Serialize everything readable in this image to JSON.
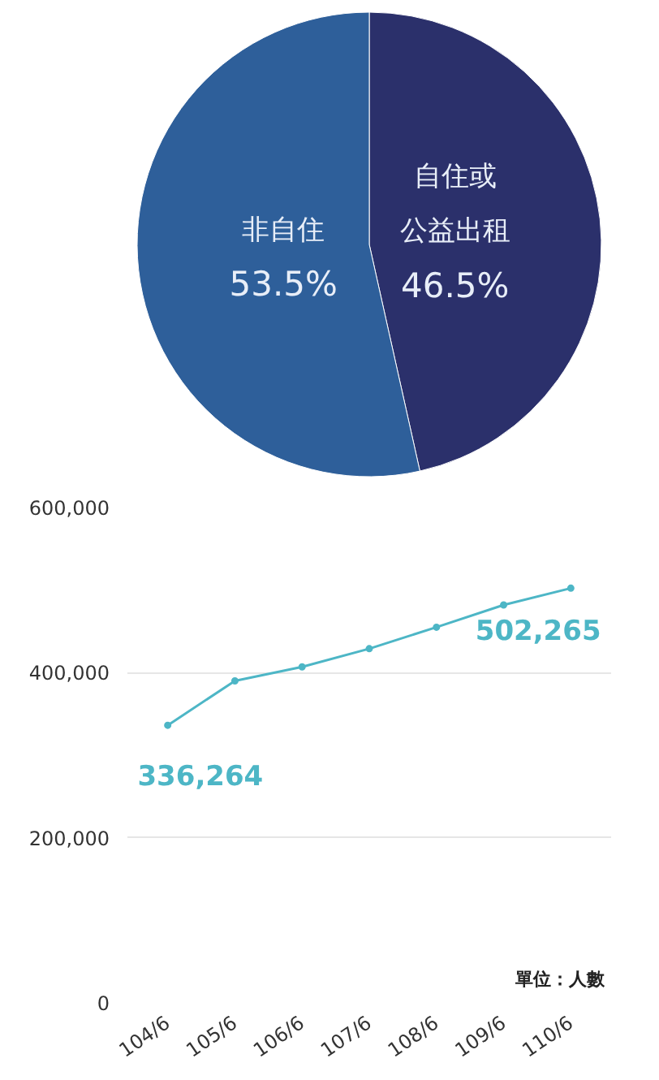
{
  "chart_data": [
    {
      "type": "pie",
      "categories": [
        "自住或公益出租",
        "非自住"
      ],
      "values": [
        46.5,
        53.5
      ],
      "colors": [
        "#2b306b",
        "#2e5f9a"
      ],
      "value_labels": [
        "46.5%",
        "53.5%"
      ]
    },
    {
      "type": "line",
      "categories": [
        "104/6",
        "105/6",
        "106/6",
        "107/6",
        "108/6",
        "109/6",
        "110/6"
      ],
      "series": [
        {
          "color": "#4db6c6",
          "values": [
            336264,
            390000,
            407000,
            429000,
            455000,
            482000,
            502265
          ],
          "value_labels": [
            "336,264",
            null,
            null,
            null,
            null,
            null,
            "502,265"
          ]
        }
      ],
      "ylim": [
        0,
        600000
      ],
      "yticks": [
        {
          "value": 0,
          "label": "0"
        },
        {
          "value": 200000,
          "label": "200,000"
        },
        {
          "value": 400000,
          "label": "400,000"
        },
        {
          "value": 600000,
          "label": "600,000"
        }
      ],
      "grid": "y",
      "marker": "circle",
      "line_style": "solid",
      "annotations": [
        "單位：人數"
      ]
    }
  ]
}
